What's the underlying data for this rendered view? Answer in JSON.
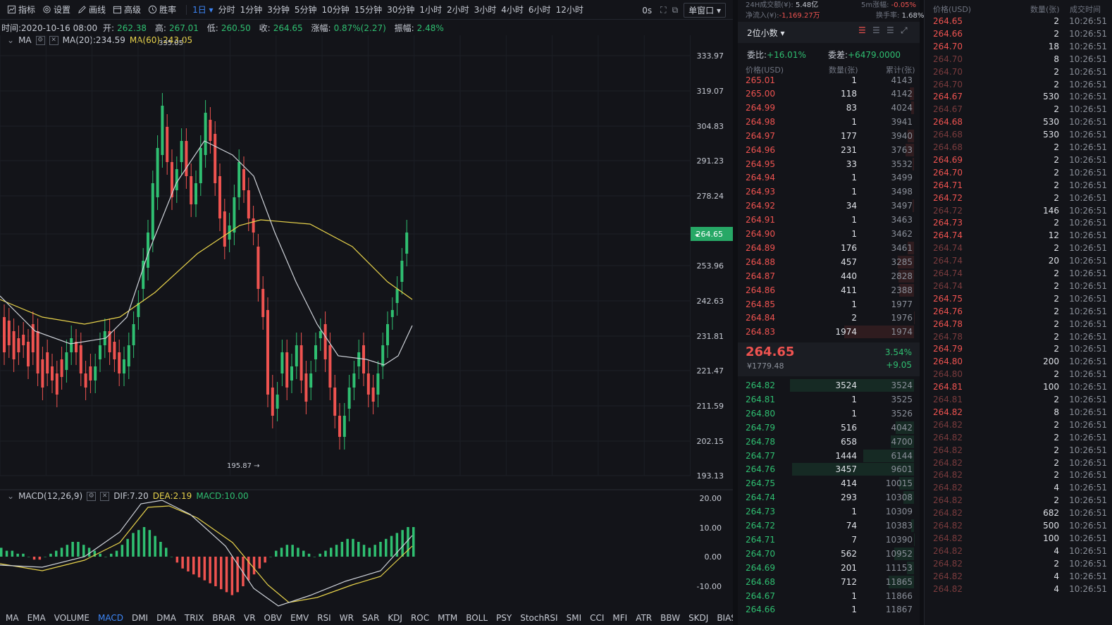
{
  "toolbar": {
    "indicators_label": "指标",
    "settings_label": "设置",
    "draw_label": "画线",
    "advanced_label": "高级",
    "winrate_label": "胜率",
    "interval_selected": "1日",
    "intervals": [
      "分时",
      "1分钟",
      "3分钟",
      "5分钟",
      "10分钟",
      "15分钟",
      "30分钟",
      "1小时",
      "2小时",
      "3小时",
      "4小时",
      "6小时",
      "12小时"
    ],
    "countdown": "0s",
    "window_mode": "单窗口"
  },
  "info": {
    "time": "时间:2020-10-16 08:00",
    "open_label": "开:",
    "open": "262.38",
    "high_label": "高:",
    "high": "267.01",
    "low_label": "低:",
    "low": "260.50",
    "close_label": "收:",
    "close": "264.65",
    "change_label": "涨幅:",
    "change": "0.87%(2.27)",
    "amp_label": "振幅:",
    "amp": "2.48%"
  },
  "ma": {
    "label": "MA",
    "ma20": "MA(20):234.59",
    "ma60": "MA(60):243.05"
  },
  "macd": {
    "label": "MACD(12,26,9)",
    "dif": "DIF:7.20",
    "dea": "DEA:2.19",
    "macd": "MACD:10.00"
  },
  "price_axis": [
    "333.97",
    "319.07",
    "304.83",
    "291.23",
    "278.24",
    "264.65",
    "253.96",
    "242.63",
    "231.81",
    "221.47",
    "211.59",
    "202.15",
    "193.13"
  ],
  "current_price_tag": "264.65",
  "low_marker": "195.87 →",
  "high_marker": "335.05",
  "macd_axis": [
    "20.00",
    "10.00",
    "0.00",
    "-10.00",
    "-20.00"
  ],
  "indicator_tabs": [
    "MA",
    "EMA",
    "VOLUME",
    "MACD",
    "DMI",
    "DMA",
    "TRIX",
    "BRAR",
    "VR",
    "OBV",
    "EMV",
    "RSI",
    "WR",
    "SAR",
    "KDJ",
    "ROC",
    "MTM",
    "BOLL",
    "PSY",
    "StochRSI",
    "SMI",
    "CCI",
    "MFI",
    "ATR",
    "BBW",
    "SKDJ",
    "BIAS"
  ],
  "indicator_active": "MACD",
  "stats": {
    "vol_label": "24H成交额(¥):",
    "vol": "5.48亿",
    "inflow_label": "净流入(¥):",
    "inflow": "-1,169.27万",
    "m5_label": "5m涨幅:",
    "m5": "-0.05%",
    "turnover_label": "换手率:",
    "turnover": "1.68%"
  },
  "orderbook": {
    "precision": "2位小数",
    "ratio_label": "委比:",
    "ratio": "+16.01%",
    "diff_label": "委差:",
    "diff": "+6479.0000",
    "col_price": "价格(USD)",
    "col_qty": "数量(张)",
    "col_total": "累计(张)",
    "partial_ask": [
      "265.01",
      "1",
      "4143"
    ],
    "asks": [
      [
        "265.00",
        "118",
        "4142"
      ],
      [
        "264.99",
        "83",
        "4024"
      ],
      [
        "264.98",
        "1",
        "3941"
      ],
      [
        "264.97",
        "177",
        "3940"
      ],
      [
        "264.96",
        "231",
        "3763"
      ],
      [
        "264.95",
        "33",
        "3532"
      ],
      [
        "264.94",
        "1",
        "3499"
      ],
      [
        "264.93",
        "1",
        "3498"
      ],
      [
        "264.92",
        "34",
        "3497"
      ],
      [
        "264.91",
        "1",
        "3463"
      ],
      [
        "264.90",
        "1",
        "3462"
      ],
      [
        "264.89",
        "176",
        "3461"
      ],
      [
        "264.88",
        "457",
        "3285"
      ],
      [
        "264.87",
        "440",
        "2828"
      ],
      [
        "264.86",
        "411",
        "2388"
      ],
      [
        "264.85",
        "1",
        "1977"
      ],
      [
        "264.84",
        "2",
        "1976"
      ],
      [
        "264.83",
        "1974",
        "1974"
      ]
    ],
    "last_price": "264.65",
    "last_cny": "¥1779.48",
    "last_pct": "3.54%",
    "last_change": "+9.05",
    "bids": [
      [
        "264.82",
        "3524",
        "3524"
      ],
      [
        "264.81",
        "1",
        "3525"
      ],
      [
        "264.80",
        "1",
        "3526"
      ],
      [
        "264.79",
        "516",
        "4042"
      ],
      [
        "264.78",
        "658",
        "4700"
      ],
      [
        "264.77",
        "1444",
        "6144"
      ],
      [
        "264.76",
        "3457",
        "9601"
      ],
      [
        "264.75",
        "414",
        "10015"
      ],
      [
        "264.74",
        "293",
        "10308"
      ],
      [
        "264.73",
        "1",
        "10309"
      ],
      [
        "264.72",
        "74",
        "10383"
      ],
      [
        "264.71",
        "7",
        "10390"
      ],
      [
        "264.70",
        "562",
        "10952"
      ],
      [
        "264.69",
        "201",
        "11153"
      ],
      [
        "264.68",
        "712",
        "11865"
      ],
      [
        "264.67",
        "1",
        "11866"
      ],
      [
        "264.66",
        "1",
        "11867"
      ]
    ]
  },
  "trades": {
    "col_price": "价格(USD)",
    "col_qty": "数量(张)",
    "col_time": "成交时间",
    "rows": [
      [
        "264.65",
        "2",
        "10:26:51",
        1
      ],
      [
        "264.66",
        "2",
        "10:26:51",
        1
      ],
      [
        "264.70",
        "18",
        "10:26:51",
        1
      ],
      [
        "264.70",
        "8",
        "10:26:51",
        0
      ],
      [
        "264.70",
        "2",
        "10:26:51",
        0
      ],
      [
        "264.70",
        "2",
        "10:26:51",
        0
      ],
      [
        "264.67",
        "530",
        "10:26:51",
        1
      ],
      [
        "264.67",
        "2",
        "10:26:51",
        0
      ],
      [
        "264.68",
        "530",
        "10:26:51",
        1
      ],
      [
        "264.68",
        "530",
        "10:26:51",
        0
      ],
      [
        "264.68",
        "2",
        "10:26:51",
        0
      ],
      [
        "264.69",
        "2",
        "10:26:51",
        1
      ],
      [
        "264.70",
        "2",
        "10:26:51",
        1
      ],
      [
        "264.71",
        "2",
        "10:26:51",
        1
      ],
      [
        "264.72",
        "2",
        "10:26:51",
        1
      ],
      [
        "264.72",
        "146",
        "10:26:51",
        0
      ],
      [
        "264.73",
        "2",
        "10:26:51",
        1
      ],
      [
        "264.74",
        "12",
        "10:26:51",
        1
      ],
      [
        "264.74",
        "2",
        "10:26:51",
        0
      ],
      [
        "264.74",
        "20",
        "10:26:51",
        0
      ],
      [
        "264.74",
        "2",
        "10:26:51",
        0
      ],
      [
        "264.74",
        "2",
        "10:26:51",
        0
      ],
      [
        "264.75",
        "2",
        "10:26:51",
        1
      ],
      [
        "264.76",
        "2",
        "10:26:51",
        1
      ],
      [
        "264.78",
        "2",
        "10:26:51",
        1
      ],
      [
        "264.78",
        "2",
        "10:26:51",
        0
      ],
      [
        "264.79",
        "2",
        "10:26:51",
        1
      ],
      [
        "264.80",
        "200",
        "10:26:51",
        1
      ],
      [
        "264.80",
        "2",
        "10:26:51",
        0
      ],
      [
        "264.81",
        "100",
        "10:26:51",
        1
      ],
      [
        "264.81",
        "2",
        "10:26:51",
        0
      ],
      [
        "264.82",
        "8",
        "10:26:51",
        1
      ],
      [
        "264.82",
        "2",
        "10:26:51",
        0
      ],
      [
        "264.82",
        "2",
        "10:26:51",
        0
      ],
      [
        "264.82",
        "2",
        "10:26:51",
        0
      ],
      [
        "264.82",
        "2",
        "10:26:51",
        0
      ],
      [
        "264.82",
        "2",
        "10:26:51",
        0
      ],
      [
        "264.82",
        "4",
        "10:26:51",
        0
      ],
      [
        "264.82",
        "2",
        "10:26:51",
        0
      ],
      [
        "264.82",
        "682",
        "10:26:51",
        0
      ],
      [
        "264.82",
        "500",
        "10:26:51",
        0
      ],
      [
        "264.82",
        "100",
        "10:26:51",
        0
      ],
      [
        "264.82",
        "4",
        "10:26:51",
        0
      ],
      [
        "264.82",
        "2",
        "10:26:51",
        0
      ],
      [
        "264.82",
        "4",
        "10:26:51",
        0
      ],
      [
        "264.82",
        "4",
        "10:26:51",
        0
      ]
    ]
  },
  "colors": {
    "up": "#2fbf71",
    "down": "#ef5350",
    "accent": "#3d86f6",
    "ma60": "#e8d34b",
    "ma20": "#cfd3da"
  }
}
